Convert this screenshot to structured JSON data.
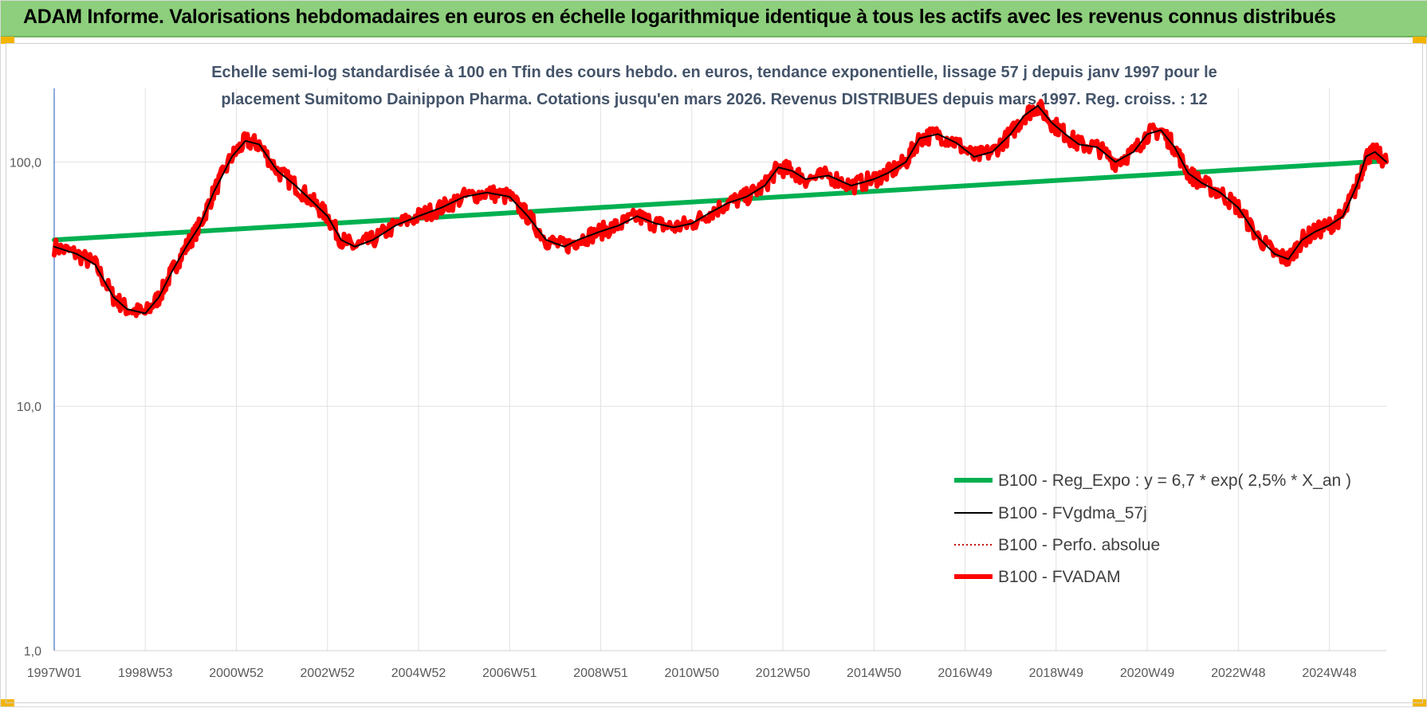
{
  "banner": {
    "text": "ADAM Informe. Valorisations hebdomadaires en euros en échelle logarithmique identique à tous les actifs avec les revenus connus distribués"
  },
  "chart_data": {
    "type": "line",
    "title_lines": [
      "Echelle semi-log standardisée à 100 en Tfin des cours hebdo. en euros, tendance exponentielle, lissage 57 j depuis janv 1997 pour le",
      "placement Sumitomo Dainippon Pharma. Cotations jusqu'en mars 2026. Revenus DISTRIBUES depuis mars 1997. Reg. croiss. : 12"
    ],
    "y_scale": "log",
    "ylim": [
      1,
      200
    ],
    "y_ticks": [
      {
        "value": 1,
        "label": "1,0"
      },
      {
        "value": 10,
        "label": "10,0"
      },
      {
        "value": 100,
        "label": "100,0"
      }
    ],
    "x_range": [
      1997.0,
      2026.25
    ],
    "x_ticks": [
      {
        "value": 1997.0,
        "label": "1997W01"
      },
      {
        "value": 1999.0,
        "label": "1998W53"
      },
      {
        "value": 2001.0,
        "label": "2000W52"
      },
      {
        "value": 2003.0,
        "label": "2002W52"
      },
      {
        "value": 2005.0,
        "label": "2004W52"
      },
      {
        "value": 2007.0,
        "label": "2006W51"
      },
      {
        "value": 2009.0,
        "label": "2008W51"
      },
      {
        "value": 2011.0,
        "label": "2010W50"
      },
      {
        "value": 2013.0,
        "label": "2012W50"
      },
      {
        "value": 2015.0,
        "label": "2014W50"
      },
      {
        "value": 2017.0,
        "label": "2016W49"
      },
      {
        "value": 2019.0,
        "label": "2018W49"
      },
      {
        "value": 2021.0,
        "label": "2020W49"
      },
      {
        "value": 2023.0,
        "label": "2022W48"
      },
      {
        "value": 2025.0,
        "label": "2024W48"
      }
    ],
    "grid": "vertical",
    "legend_position": "bottom-right",
    "series": [
      {
        "name": "B100 - Reg_Expo : y = 6,7 * exp( 2,5% *  X_an )",
        "color": "#00b050",
        "style": "thick",
        "x": [
          1997.0,
          2026.25
        ],
        "y": [
          48,
          101
        ]
      },
      {
        "name": "B100 - FVgdma_57j",
        "color": "#000000",
        "style": "thin",
        "x": [
          1997.0,
          1997.5,
          1997.9,
          1998.3,
          1998.6,
          1999.0,
          1999.3,
          1999.6,
          1999.9,
          2000.2,
          2000.5,
          2000.9,
          2001.2,
          2001.5,
          2001.9,
          2002.3,
          2002.7,
          2003.0,
          2003.3,
          2003.6,
          2004.0,
          2004.5,
          2005.0,
          2005.5,
          2006.0,
          2006.5,
          2007.0,
          2007.4,
          2007.8,
          2008.2,
          2008.5,
          2009.0,
          2009.4,
          2009.8,
          2010.2,
          2010.6,
          2011.0,
          2011.4,
          2011.8,
          2012.2,
          2012.6,
          2012.9,
          2013.2,
          2013.5,
          2014.0,
          2014.5,
          2015.0,
          2015.3,
          2015.7,
          2016.0,
          2016.4,
          2016.8,
          2017.2,
          2017.6,
          2018.0,
          2018.3,
          2018.6,
          2018.9,
          2019.2,
          2019.5,
          2019.9,
          2020.3,
          2020.7,
          2021.0,
          2021.3,
          2021.6,
          2021.9,
          2022.2,
          2022.6,
          2023.0,
          2023.4,
          2023.8,
          2024.1,
          2024.4,
          2024.7,
          2025.0,
          2025.3,
          2025.6,
          2025.8,
          2026.0,
          2026.25
        ],
        "y": [
          45,
          42,
          38,
          28,
          25,
          24,
          28,
          36,
          45,
          55,
          75,
          105,
          122,
          118,
          92,
          80,
          68,
          60,
          48,
          45,
          48,
          55,
          60,
          65,
          72,
          75,
          72,
          60,
          48,
          45,
          48,
          52,
          55,
          60,
          56,
          54,
          56,
          62,
          68,
          72,
          80,
          95,
          92,
          85,
          88,
          80,
          85,
          90,
          100,
          125,
          130,
          120,
          105,
          110,
          130,
          155,
          170,
          145,
          130,
          118,
          115,
          100,
          110,
          130,
          135,
          115,
          90,
          82,
          75,
          65,
          50,
          42,
          40,
          48,
          52,
          55,
          60,
          80,
          105,
          110,
          100
        ],
        "note": "smoothed 57-day moving average (approx.)"
      },
      {
        "name": "B100 - Perfo. absolue",
        "color": "#c00000",
        "style": "dotted",
        "x": [],
        "y": []
      },
      {
        "name": "B100 - FVADAM",
        "color": "#ff0000",
        "style": "thick",
        "x": [
          1997.0,
          1997.5,
          1997.9,
          1998.3,
          1998.6,
          1999.0,
          1999.3,
          1999.6,
          1999.9,
          2000.2,
          2000.5,
          2000.9,
          2001.2,
          2001.5,
          2001.9,
          2002.3,
          2002.7,
          2003.0,
          2003.3,
          2003.6,
          2004.0,
          2004.5,
          2005.0,
          2005.5,
          2006.0,
          2006.5,
          2007.0,
          2007.4,
          2007.8,
          2008.2,
          2008.5,
          2009.0,
          2009.4,
          2009.8,
          2010.2,
          2010.6,
          2011.0,
          2011.4,
          2011.8,
          2012.2,
          2012.6,
          2012.9,
          2013.2,
          2013.5,
          2014.0,
          2014.5,
          2015.0,
          2015.3,
          2015.7,
          2016.0,
          2016.4,
          2016.8,
          2017.2,
          2017.6,
          2018.0,
          2018.3,
          2018.6,
          2018.9,
          2019.2,
          2019.5,
          2019.9,
          2020.3,
          2020.7,
          2021.0,
          2021.3,
          2021.6,
          2021.9,
          2022.2,
          2022.6,
          2023.0,
          2023.4,
          2023.8,
          2024.1,
          2024.4,
          2024.7,
          2025.0,
          2025.3,
          2025.6,
          2025.8,
          2026.0,
          2026.25
        ],
        "y": [
          45,
          42,
          38,
          28,
          25,
          24,
          28,
          36,
          45,
          55,
          75,
          105,
          122,
          118,
          92,
          80,
          68,
          60,
          48,
          45,
          48,
          55,
          60,
          65,
          72,
          75,
          72,
          60,
          48,
          45,
          48,
          52,
          55,
          60,
          56,
          54,
          56,
          62,
          68,
          72,
          80,
          95,
          92,
          85,
          88,
          80,
          85,
          90,
          100,
          125,
          130,
          120,
          105,
          110,
          130,
          155,
          170,
          145,
          130,
          118,
          115,
          100,
          110,
          130,
          135,
          115,
          90,
          82,
          75,
          65,
          50,
          42,
          40,
          48,
          52,
          55,
          60,
          80,
          105,
          110,
          100
        ],
        "note": "weekly valuation (approx.), noisier than moving average"
      }
    ]
  }
}
